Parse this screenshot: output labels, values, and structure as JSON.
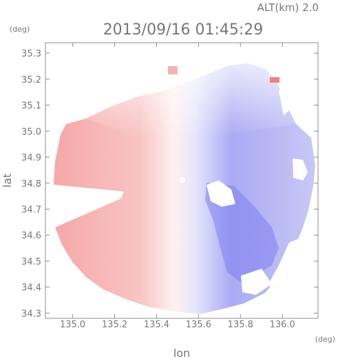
{
  "header": {
    "altitude_label": "ALT(km) 2.0",
    "timestamp": "2013/09/16 01:45:29"
  },
  "chart_data": {
    "type": "heatmap",
    "title": "2013/09/16 01:45:29",
    "subtitle": "ALT(km) 2.0",
    "xlabel": "lon",
    "ylabel": "lat",
    "x_unit": "(deg)",
    "y_unit": "(deg)",
    "xlim": [
      134.87,
      136.17
    ],
    "ylim": [
      34.28,
      35.34
    ],
    "x_ticks": [
      135.0,
      135.2,
      135.4,
      135.6,
      135.8,
      136.0
    ],
    "x_tick_labels": [
      "135.0",
      "135.2",
      "135.4",
      "135.6",
      "135.8",
      "136.0"
    ],
    "y_ticks": [
      34.3,
      34.4,
      34.5,
      34.6,
      34.7,
      34.8,
      34.9,
      35.0,
      35.1,
      35.2,
      35.3
    ],
    "y_tick_labels": [
      "34.3",
      "34.4",
      "34.5",
      "34.6",
      "34.7",
      "34.8",
      "34.9",
      "35.0",
      "35.1",
      "35.2",
      "35.3"
    ],
    "radar_center": {
      "lon": 135.52,
      "lat": 34.81
    },
    "colors": {
      "toward": "#7878f0",
      "away": "#f6a0a0",
      "neutral": "#ffffff",
      "axis": "#8c8c8c"
    },
    "grid": false,
    "legend": "none"
  }
}
